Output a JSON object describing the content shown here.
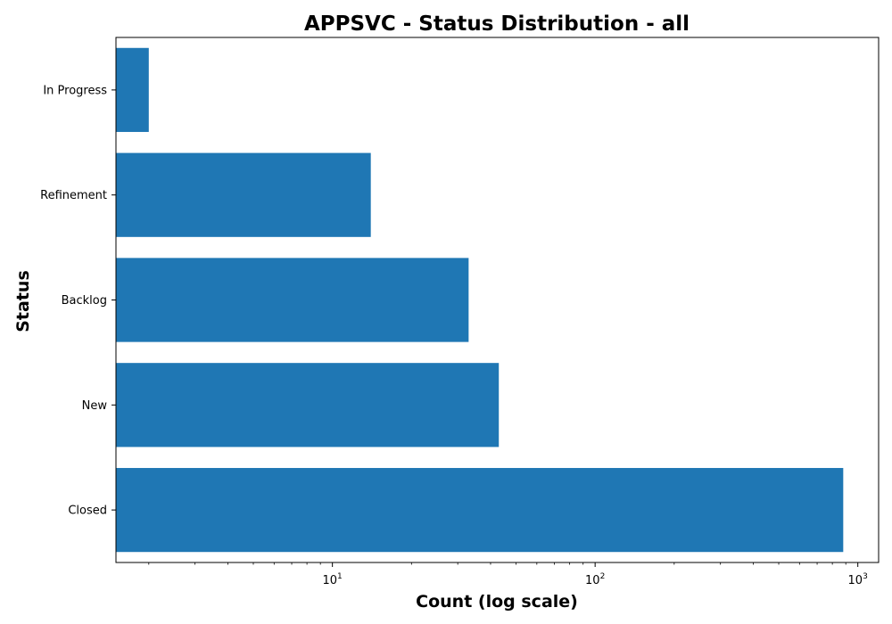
{
  "chart_data": {
    "type": "bar",
    "orientation": "horizontal",
    "title": "APPSVC - Status Distribution - all",
    "xlabel": "Count (log scale)",
    "ylabel": "Status",
    "x_scale": "log",
    "xlim": [
      1.5,
      1200
    ],
    "x_ticks": [
      {
        "value": 10,
        "base": "10",
        "exp": "1"
      },
      {
        "value": 100,
        "base": "10",
        "exp": "2"
      },
      {
        "value": 1000,
        "base": "10",
        "exp": "3"
      }
    ],
    "categories": [
      "In Progress",
      "Refinement",
      "Backlog",
      "New",
      "Closed"
    ],
    "values": [
      2,
      14,
      33,
      43,
      880
    ],
    "bar_color": "#1f77b4",
    "grid": false,
    "legend": "none"
  }
}
